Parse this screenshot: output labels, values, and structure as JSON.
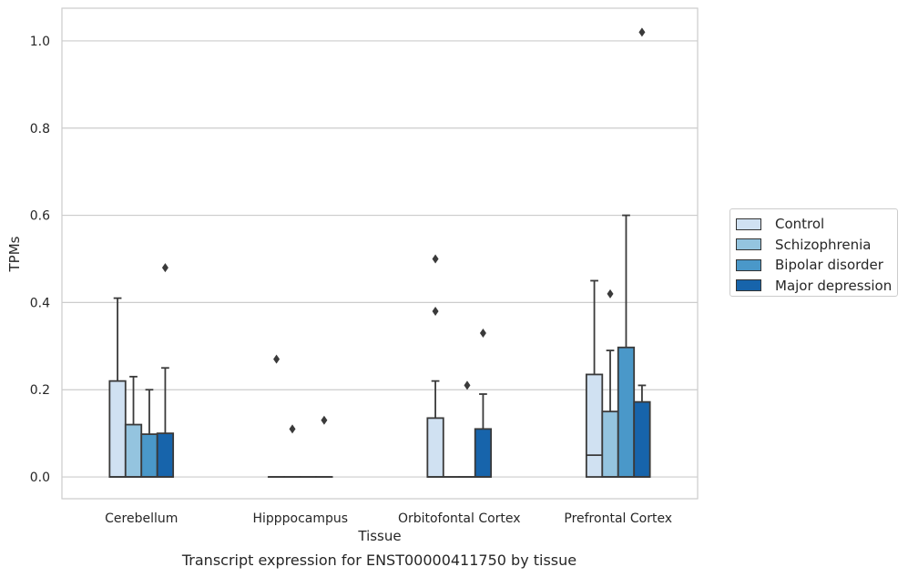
{
  "caption": "Transcript expression for ENST00000411750 by tissue",
  "chart_data": {
    "type": "box",
    "xlabel": "Tissue",
    "ylabel": "TPMs",
    "ylim": [
      -0.05,
      1.075
    ],
    "yticks": [
      0.0,
      0.2,
      0.4,
      0.6,
      0.8,
      1.0
    ],
    "ytick_labels": [
      "0.0",
      "0.2",
      "0.4",
      "0.6",
      "0.8",
      "1.0"
    ],
    "grid": true,
    "legend_position": "right",
    "categories": [
      "Cerebellum",
      "Hipppocampus",
      "Orbitofontal Cortex",
      "Prefrontal Cortex"
    ],
    "series": [
      {
        "name": "Control",
        "color": "#d0e1f2",
        "boxes": [
          {
            "q1": 0,
            "median": 0,
            "q3": 0.22,
            "whisker_low": 0,
            "whisker_high": 0.41,
            "outliers": []
          },
          {
            "q1": 0,
            "median": 0,
            "q3": 0,
            "whisker_low": 0,
            "whisker_high": 0,
            "outliers": [
              0.27
            ]
          },
          {
            "q1": 0,
            "median": 0,
            "q3": 0.135,
            "whisker_low": 0,
            "whisker_high": 0.22,
            "outliers": [
              0.38,
              0.5
            ]
          },
          {
            "q1": 0,
            "median": 0.05,
            "q3": 0.235,
            "whisker_low": 0,
            "whisker_high": 0.45,
            "outliers": []
          }
        ]
      },
      {
        "name": "Schizophrenia",
        "color": "#94c4df",
        "boxes": [
          {
            "q1": 0,
            "median": 0,
            "q3": 0.12,
            "whisker_low": 0,
            "whisker_high": 0.23,
            "outliers": []
          },
          {
            "q1": 0,
            "median": 0,
            "q3": 0,
            "whisker_low": 0,
            "whisker_high": 0,
            "outliers": [
              0.11
            ]
          },
          {
            "q1": 0,
            "median": 0,
            "q3": 0,
            "whisker_low": 0,
            "whisker_high": 0,
            "outliers": []
          },
          {
            "q1": 0,
            "median": 0,
            "q3": 0.15,
            "whisker_low": 0,
            "whisker_high": 0.29,
            "outliers": [
              0.42
            ]
          }
        ]
      },
      {
        "name": "Bipolar disorder",
        "color": "#4a98c9",
        "boxes": [
          {
            "q1": 0,
            "median": 0,
            "q3": 0.098,
            "whisker_low": 0,
            "whisker_high": 0.2,
            "outliers": []
          },
          {
            "q1": 0,
            "median": 0,
            "q3": 0,
            "whisker_low": 0,
            "whisker_high": 0,
            "outliers": []
          },
          {
            "q1": 0,
            "median": 0,
            "q3": 0,
            "whisker_low": 0,
            "whisker_high": 0,
            "outliers": [
              0.21
            ]
          },
          {
            "q1": 0,
            "median": 0,
            "q3": 0.297,
            "whisker_low": 0,
            "whisker_high": 0.6,
            "outliers": []
          }
        ]
      },
      {
        "name": "Major depression",
        "color": "#1764ab",
        "boxes": [
          {
            "q1": 0,
            "median": 0,
            "q3": 0.1,
            "whisker_low": 0,
            "whisker_high": 0.25,
            "outliers": [
              0.48
            ]
          },
          {
            "q1": 0,
            "median": 0,
            "q3": 0,
            "whisker_low": 0,
            "whisker_high": 0,
            "outliers": [
              0.13
            ]
          },
          {
            "q1": 0,
            "median": 0,
            "q3": 0.11,
            "whisker_low": 0,
            "whisker_high": 0.19,
            "outliers": [
              0.33
            ]
          },
          {
            "q1": 0,
            "median": 0,
            "q3": 0.172,
            "whisker_low": 0,
            "whisker_high": 0.21,
            "outliers": [
              1.02
            ]
          }
        ]
      }
    ]
  }
}
